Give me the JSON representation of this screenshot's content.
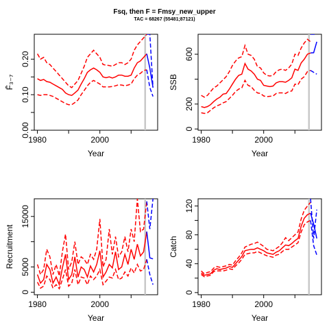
{
  "figure": {
    "title": "Fsq, then F = Fmsy_new_upper",
    "subtitle": "TAC = 68267 (55481;87121)",
    "colors": {
      "historic": "#ff0000",
      "projection": "#0000ff",
      "divider": "#c8c8c8"
    }
  },
  "chart_data": [
    {
      "id": "fbar",
      "type": "line",
      "xlabel": "Year",
      "ylabel": "F̄₃₋₇",
      "xlim": [
        1979,
        2018.5
      ],
      "ylim": [
        0,
        0.27
      ],
      "xticks": [
        1980,
        2000
      ],
      "yticks": [
        0.0,
        0.1,
        0.2
      ],
      "ytick_labels": [
        "0.00",
        "0.10",
        "0.20"
      ],
      "minor_yticks": [
        0.05,
        0.15
      ],
      "divider_year": 2014.5,
      "historic": {
        "x": [
          1980,
          1981,
          1982,
          1983,
          1984,
          1985,
          1986,
          1987,
          1988,
          1989,
          1990,
          1991,
          1992,
          1993,
          1994,
          1995,
          1996,
          1997,
          1998,
          1999,
          2000,
          2001,
          2002,
          2003,
          2004,
          2005,
          2006,
          2007,
          2008,
          2009,
          2010,
          2011,
          2012,
          2013,
          2014,
          2015
        ],
        "median": [
          0.145,
          0.14,
          0.143,
          0.137,
          0.135,
          0.13,
          0.125,
          0.12,
          0.115,
          0.105,
          0.1,
          0.098,
          0.105,
          0.113,
          0.13,
          0.145,
          0.163,
          0.17,
          0.175,
          0.17,
          0.163,
          0.15,
          0.148,
          0.15,
          0.147,
          0.15,
          0.155,
          0.155,
          0.152,
          0.152,
          0.155,
          0.175,
          0.19,
          0.195,
          0.205,
          0.215
        ],
        "upper": [
          0.215,
          0.2,
          0.205,
          0.19,
          0.185,
          0.175,
          0.165,
          0.155,
          0.145,
          0.135,
          0.125,
          0.12,
          0.13,
          0.14,
          0.16,
          0.18,
          0.205,
          0.215,
          0.225,
          0.215,
          0.205,
          0.185,
          0.183,
          0.182,
          0.18,
          0.185,
          0.19,
          0.19,
          0.185,
          0.19,
          0.2,
          0.225,
          0.24,
          0.25,
          0.26,
          0.275
        ],
        "lower": [
          0.1,
          0.098,
          0.1,
          0.1,
          0.098,
          0.095,
          0.09,
          0.085,
          0.08,
          0.075,
          0.072,
          0.072,
          0.078,
          0.085,
          0.1,
          0.112,
          0.125,
          0.135,
          0.14,
          0.135,
          0.13,
          0.122,
          0.122,
          0.122,
          0.123,
          0.125,
          0.128,
          0.127,
          0.125,
          0.127,
          0.13,
          0.145,
          0.155,
          0.16,
          0.168,
          0.17
        ]
      },
      "projection": {
        "x": [
          2015,
          2016,
          2017
        ],
        "median": [
          0.215,
          0.175,
          0.12
        ],
        "upper": [
          0.285,
          0.285,
          0.12
        ],
        "lower": [
          0.17,
          0.12,
          0.095
        ]
      }
    },
    {
      "id": "ssb",
      "type": "line",
      "xlabel": "Year",
      "ylabel": "SSB",
      "xlim": [
        1979,
        2018.5
      ],
      "ylim": [
        -10,
        760
      ],
      "xticks": [
        1980,
        2000
      ],
      "yticks": [
        0,
        200,
        600
      ],
      "ytick_labels": [
        "0",
        "200",
        "600"
      ],
      "minor_yticks": [
        400
      ],
      "divider_year": 2014.5,
      "historic": {
        "x": [
          1980,
          1981,
          1982,
          1983,
          1984,
          1985,
          1986,
          1987,
          1988,
          1989,
          1990,
          1991,
          1992,
          1993,
          1994,
          1995,
          1996,
          1997,
          1998,
          1999,
          2000,
          2001,
          2002,
          2003,
          2004,
          2005,
          2006,
          2007,
          2008,
          2009,
          2010,
          2011,
          2012,
          2013,
          2014,
          2015
        ],
        "median": [
          180,
          172,
          180,
          195,
          220,
          240,
          255,
          280,
          285,
          320,
          360,
          400,
          430,
          440,
          525,
          480,
          465,
          440,
          400,
          390,
          350,
          345,
          340,
          345,
          370,
          380,
          380,
          375,
          390,
          410,
          480,
          470,
          530,
          560,
          600,
          610
        ],
        "upper": [
          270,
          255,
          270,
          300,
          330,
          345,
          370,
          395,
          420,
          460,
          510,
          545,
          570,
          580,
          670,
          600,
          590,
          560,
          500,
          490,
          450,
          430,
          425,
          430,
          460,
          475,
          480,
          470,
          490,
          520,
          600,
          590,
          650,
          690,
          720,
          700
        ],
        "lower": [
          130,
          125,
          130,
          150,
          170,
          185,
          195,
          210,
          220,
          245,
          270,
          300,
          320,
          330,
          390,
          350,
          340,
          310,
          290,
          285,
          265,
          260,
          262,
          265,
          285,
          290,
          290,
          285,
          300,
          305,
          360,
          355,
          400,
          420,
          460,
          470
        ]
      },
      "projection": {
        "x": [
          2015,
          2016,
          2017
        ],
        "median": [
          610,
          612,
          700
        ],
        "upper": [
          760,
          760,
          760
        ],
        "lower": [
          470,
          455,
          440
        ]
      }
    },
    {
      "id": "recruitment",
      "type": "line",
      "xlabel": "Year",
      "ylabel": "Recruitment",
      "xlim": [
        1979,
        2018.5
      ],
      "ylim": [
        -500,
        18500
      ],
      "xticks": [
        1980,
        2000
      ],
      "yticks": [
        0,
        5000,
        15000
      ],
      "ytick_labels": [
        "0",
        "5000",
        "15000"
      ],
      "minor_yticks": [
        10000
      ],
      "divider_year": 2014.5,
      "historic": {
        "x": [
          1980,
          1981,
          1982,
          1983,
          1984,
          1985,
          1986,
          1987,
          1988,
          1989,
          1990,
          1991,
          1992,
          1993,
          1994,
          1995,
          1996,
          1997,
          1998,
          1999,
          2000,
          2001,
          2002,
          2003,
          2004,
          2005,
          2006,
          2007,
          2008,
          2009,
          2010,
          2011,
          2012,
          2013,
          2014,
          2015
        ],
        "median": [
          3500,
          1800,
          2500,
          5500,
          4500,
          1800,
          3000,
          1500,
          4800,
          7500,
          2500,
          3500,
          7000,
          3000,
          5000,
          4500,
          3000,
          5200,
          4000,
          5500,
          8200,
          3000,
          4000,
          5500,
          4800,
          8000,
          4500,
          5000,
          7500,
          5500,
          8500,
          6500,
          9500,
          7200,
          8000,
          12000
        ],
        "upper": [
          5500,
          3500,
          4500,
          8500,
          7000,
          3500,
          5500,
          3200,
          8000,
          11500,
          4500,
          6000,
          10000,
          5500,
          7000,
          6500,
          5500,
          7500,
          6500,
          8500,
          14500,
          5000,
          6500,
          12500,
          7500,
          11000,
          7000,
          8000,
          11000,
          8000,
          12500,
          10000,
          18500,
          12000,
          12500,
          18000
        ],
        "lower": [
          2000,
          800,
          1200,
          3200,
          2500,
          800,
          1500,
          700,
          2500,
          4500,
          1200,
          1800,
          4500,
          1500,
          3000,
          2800,
          1500,
          3200,
          2500,
          3200,
          4500,
          1500,
          2200,
          3000,
          2800,
          4500,
          2500,
          2800,
          4000,
          3200,
          4800,
          3800,
          5500,
          4200,
          4500,
          6500
        ]
      },
      "projection": {
        "x": [
          2015,
          2016,
          2017
        ],
        "median": [
          12000,
          6800,
          6600
        ],
        "upper": [
          18000,
          12500,
          18500
        ],
        "lower": [
          6500,
          3500,
          1500
        ]
      }
    },
    {
      "id": "catch",
      "type": "line",
      "xlabel": "Year",
      "ylabel": "Catch",
      "xlim": [
        1979,
        2018.5
      ],
      "ylim": [
        -3,
        130
      ],
      "xticks": [
        1980,
        2000
      ],
      "yticks": [
        0,
        40,
        80,
        120
      ],
      "ytick_labels": [
        "0",
        "40",
        "80",
        "120"
      ],
      "minor_yticks": [
        20,
        60,
        100
      ],
      "divider_year": 2014.5,
      "historic": {
        "x": [
          1980,
          1981,
          1982,
          1983,
          1984,
          1985,
          1986,
          1987,
          1988,
          1989,
          1990,
          1991,
          1992,
          1993,
          1994,
          1995,
          1996,
          1997,
          1998,
          1999,
          2000,
          2001,
          2002,
          2003,
          2004,
          2005,
          2006,
          2007,
          2008,
          2009,
          2010,
          2011,
          2012,
          2013,
          2014,
          2015
        ],
        "median": [
          27,
          24,
          25,
          26,
          31,
          33,
          32,
          33,
          34,
          36,
          35,
          40,
          45,
          50,
          58,
          59,
          60,
          60,
          62,
          60,
          58,
          55,
          54,
          53,
          56,
          58,
          62,
          66,
          65,
          68,
          72,
          75,
          92,
          103,
          108,
          110
        ],
        "upper": [
          30,
          26,
          28,
          29,
          34,
          36,
          35,
          36,
          37,
          39,
          38,
          44,
          49,
          55,
          63,
          65,
          67,
          68,
          70,
          67,
          64,
          60,
          59,
          58,
          61,
          64,
          69,
          76,
          72,
          76,
          80,
          84,
          102,
          114,
          120,
          125
        ],
        "lower": [
          25,
          22,
          23,
          24,
          29,
          30,
          30,
          30,
          31,
          33,
          32,
          37,
          41,
          46,
          53,
          54,
          55,
          55,
          57,
          55,
          53,
          51,
          50,
          49,
          52,
          53,
          57,
          60,
          60,
          63,
          66,
          69,
          84,
          94,
          98,
          100
        ]
      },
      "projection": {
        "x": [
          2015,
          2016,
          2017
        ],
        "median": [
          110,
          95,
          75
        ],
        "upper": [
          130,
          75,
          115
        ],
        "lower": [
          100,
          65,
          52
        ]
      }
    }
  ]
}
